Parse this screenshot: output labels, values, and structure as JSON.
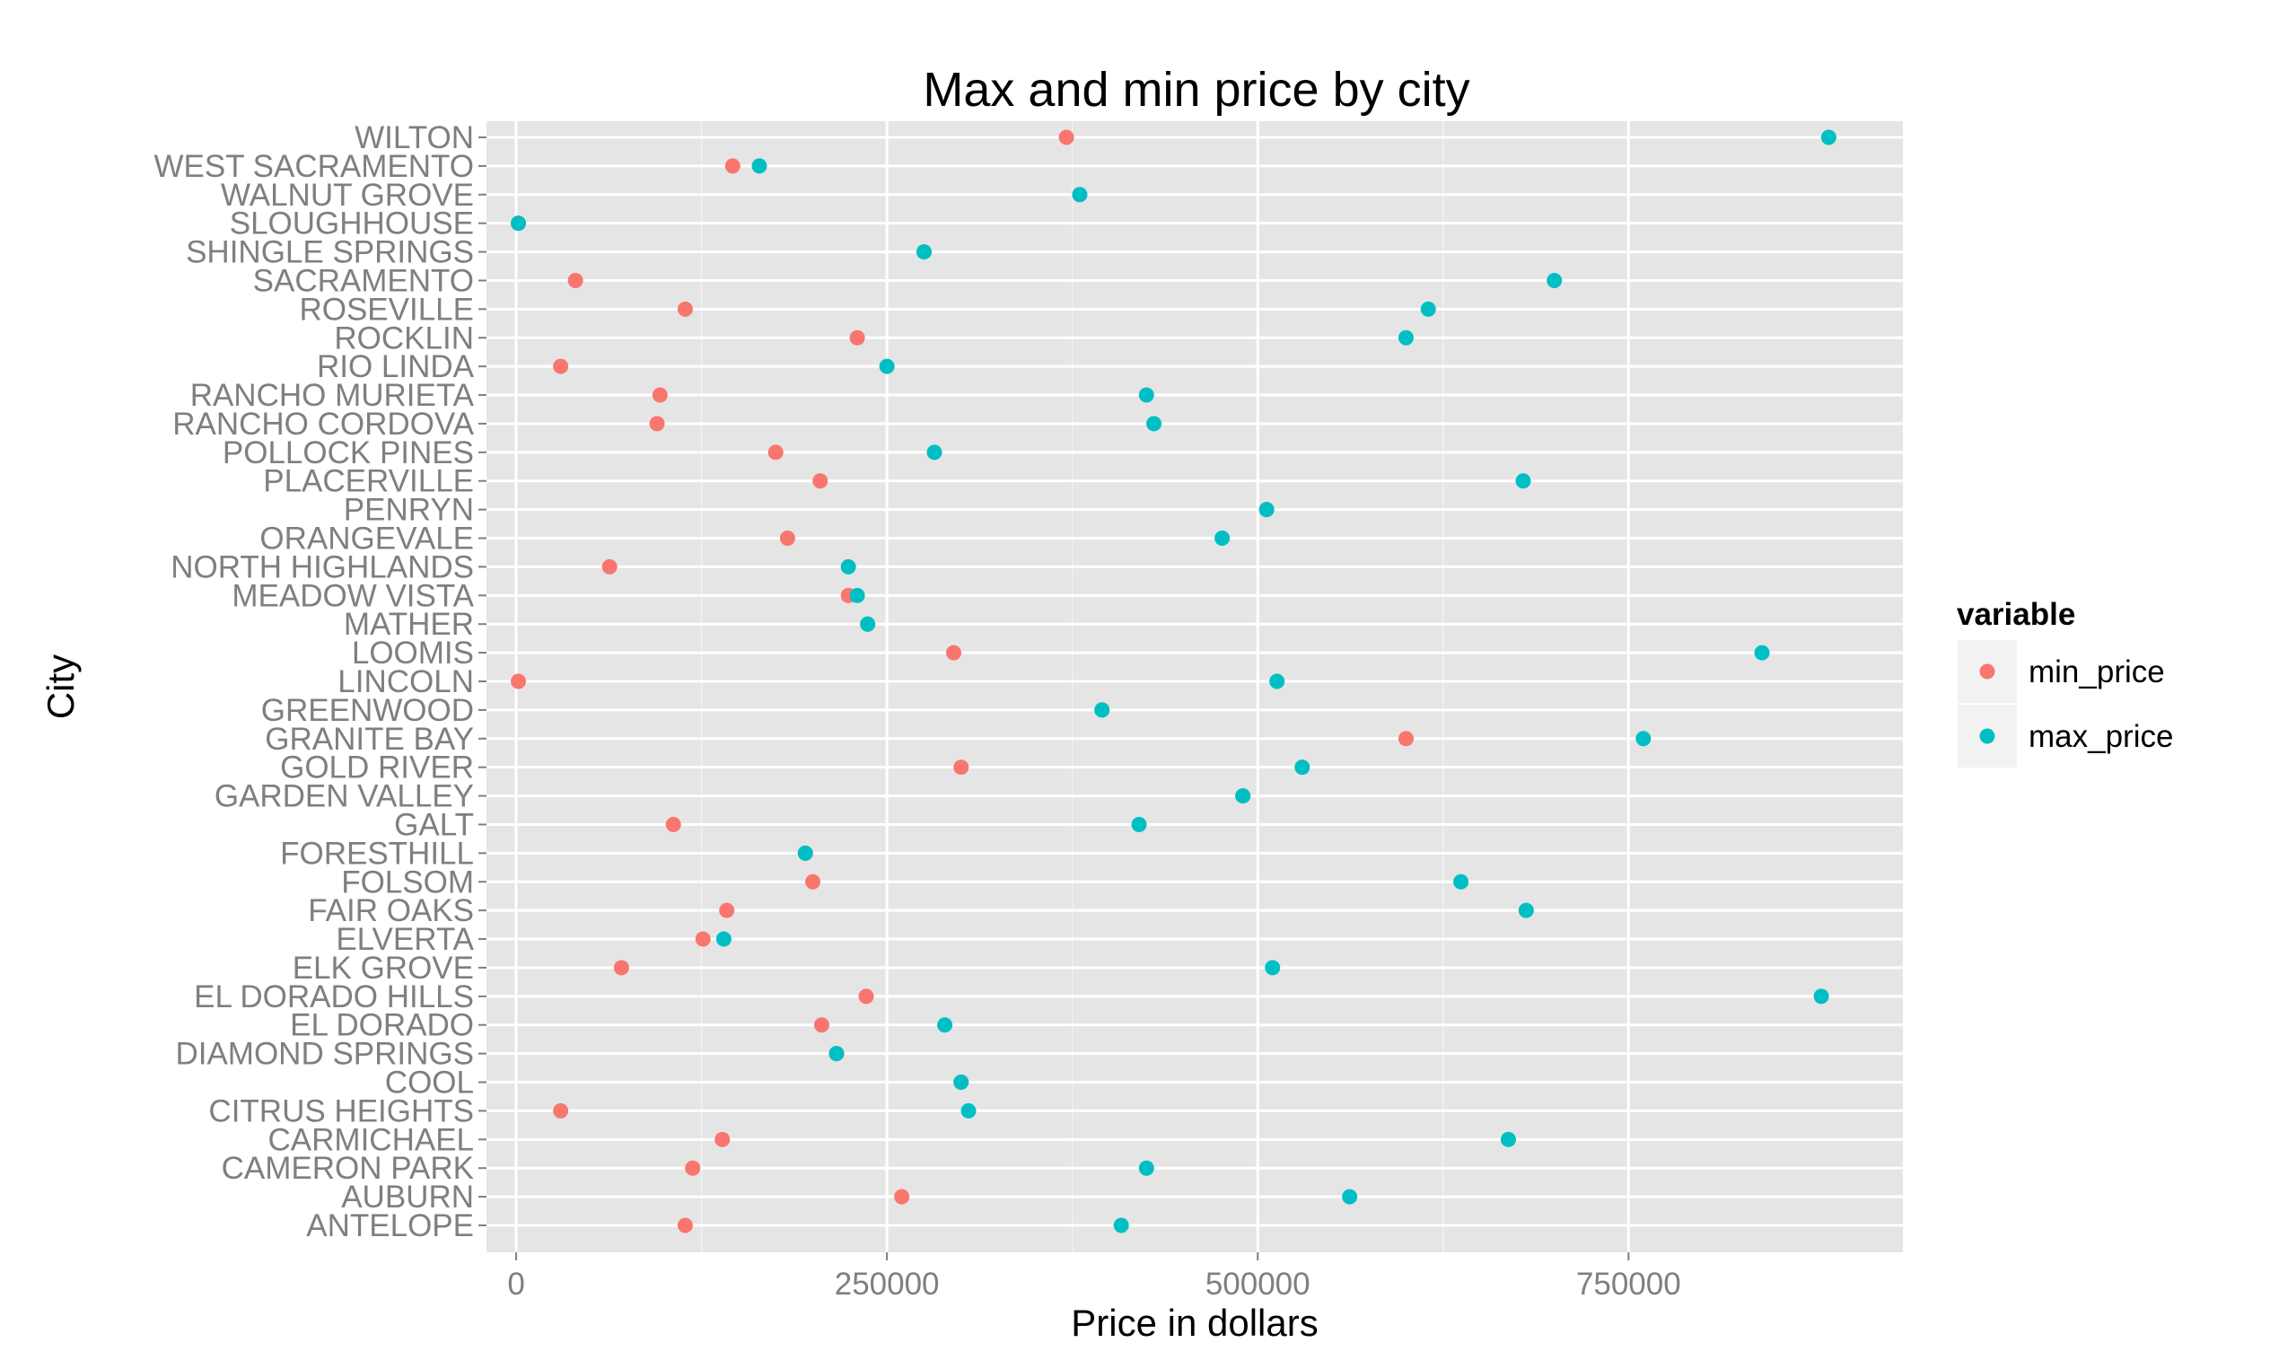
{
  "chart_data": {
    "type": "scatter",
    "title": "Max and min price by city",
    "xlabel": "Price in dollars",
    "ylabel": "City",
    "xlim": [
      -20000,
      935000
    ],
    "xticks": [
      0,
      250000,
      500000,
      750000
    ],
    "xtick_labels": [
      "0",
      "250000",
      "500000",
      "750000"
    ],
    "grid": true,
    "legend": {
      "title": "variable",
      "position": "right"
    },
    "categories": [
      "WILTON",
      "WEST SACRAMENTO",
      "WALNUT GROVE",
      "SLOUGHHOUSE",
      "SHINGLE SPRINGS",
      "SACRAMENTO",
      "ROSEVILLE",
      "ROCKLIN",
      "RIO LINDA",
      "RANCHO MURIETA",
      "RANCHO CORDOVA",
      "POLLOCK PINES",
      "PLACERVILLE",
      "PENRYN",
      "ORANGEVALE",
      "NORTH HIGHLANDS",
      "MEADOW VISTA",
      "MATHER",
      "LOOMIS",
      "LINCOLN",
      "GREENWOOD",
      "GRANITE BAY",
      "GOLD RIVER",
      "GARDEN VALLEY",
      "GALT",
      "FORESTHILL",
      "FOLSOM",
      "FAIR OAKS",
      "ELVERTA",
      "ELK GROVE",
      "EL DORADO HILLS",
      "EL DORADO",
      "DIAMOND SPRINGS",
      "COOL",
      "CITRUS HEIGHTS",
      "CARMICHAEL",
      "CAMERON PARK",
      "AUBURN",
      "ANTELOPE"
    ],
    "series": [
      {
        "name": "min_price",
        "color": "#f8766d",
        "values": [
          371000,
          146000,
          380000,
          1500,
          275000,
          40000,
          114000,
          230000,
          30000,
          97000,
          95000,
          175000,
          205000,
          506000,
          183000,
          63000,
          224000,
          237000,
          295000,
          1500,
          395000,
          600000,
          300000,
          490000,
          106000,
          195000,
          200000,
          142000,
          126000,
          71000,
          236000,
          206000,
          216000,
          300000,
          30000,
          139000,
          119000,
          260000,
          114000
        ]
      },
      {
        "name": "max_price",
        "color": "#00bfc4",
        "values": [
          885000,
          164000,
          380000,
          1500,
          275000,
          700000,
          615000,
          600000,
          250000,
          425000,
          430000,
          282000,
          679000,
          506000,
          476000,
          224000,
          230000,
          237000,
          840000,
          513000,
          395000,
          760000,
          530000,
          490000,
          420000,
          195000,
          637000,
          681000,
          140000,
          510000,
          880000,
          289000,
          216000,
          300000,
          305000,
          669000,
          425000,
          562000,
          408000
        ]
      }
    ]
  }
}
